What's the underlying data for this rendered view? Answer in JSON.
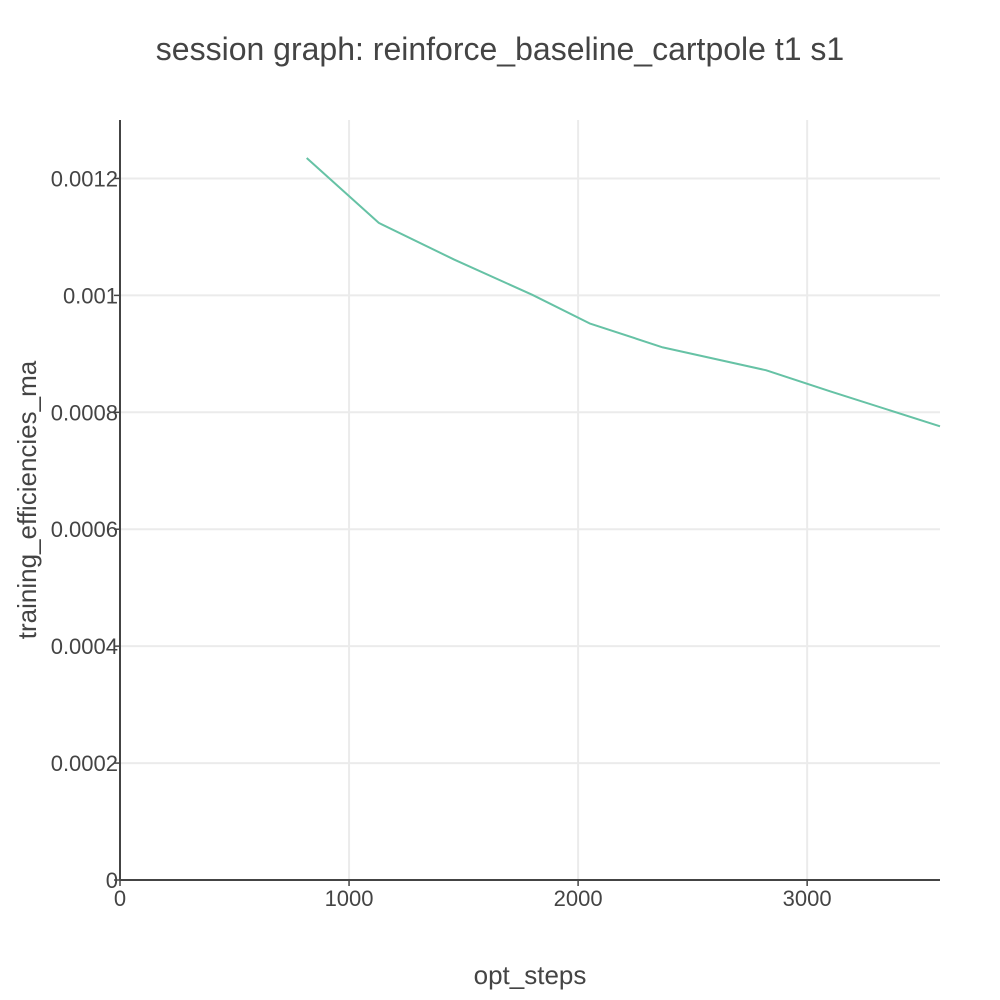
{
  "chart_data": {
    "type": "line",
    "title": "session graph: reinforce_baseline_cartpole t1 s1",
    "xlabel": "opt_steps",
    "ylabel": "training_efficiencies_ma",
    "xlim": [
      0,
      3580
    ],
    "ylim": [
      0,
      0.0013
    ],
    "x_ticks": [
      0,
      1000,
      2000,
      3000
    ],
    "x_tick_labels": [
      "0",
      "1000",
      "2000",
      "3000"
    ],
    "y_ticks": [
      0,
      0.0002,
      0.0004,
      0.0006,
      0.0008,
      0.001,
      0.0012
    ],
    "y_tick_labels": [
      "0",
      "0.0002",
      "0.0004",
      "0.0006",
      "0.0008",
      "0.001",
      "0.0012"
    ],
    "grid": true,
    "legend": false,
    "series": [
      {
        "color": "#66c2a5",
        "x": [
          815,
          1130,
          1460,
          1800,
          2050,
          2370,
          2820,
          3100,
          3580
        ],
        "y": [
          0.001235,
          0.001124,
          0.001061,
          0.001001,
          0.000952,
          0.000911,
          0.000872,
          0.000836,
          0.000776
        ]
      }
    ]
  }
}
